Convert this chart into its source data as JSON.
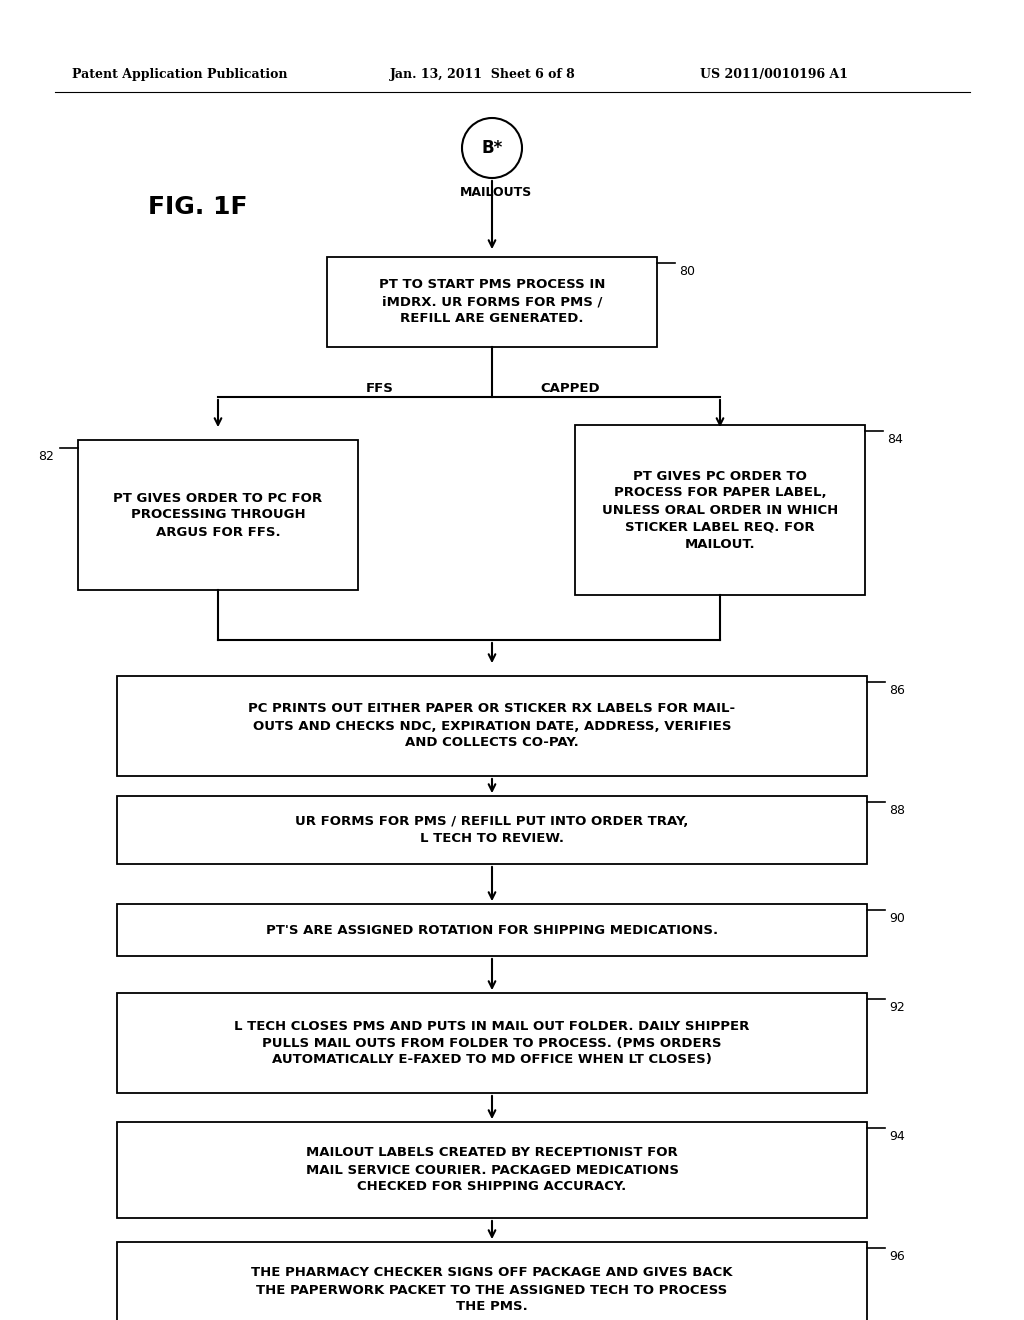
{
  "bg_color": "#ffffff",
  "header_left": "Patent Application Publication",
  "header_mid": "Jan. 13, 2011  Sheet 6 of 8",
  "header_right": "US 2011/0010196 A1",
  "fig_label": "FIG. 1F"
}
